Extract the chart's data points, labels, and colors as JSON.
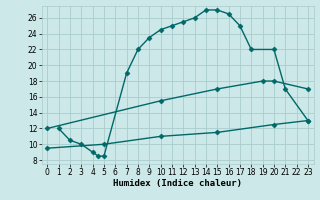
{
  "background_color": "#cce8e8",
  "grid_color": "#aacccc",
  "line_color": "#006868",
  "xlabel": "Humidex (Indice chaleur)",
  "xlim": [
    -0.5,
    23.5
  ],
  "ylim": [
    7.5,
    27.5
  ],
  "yticks": [
    8,
    10,
    12,
    14,
    16,
    18,
    20,
    22,
    24,
    26
  ],
  "xticks": [
    0,
    1,
    2,
    3,
    4,
    5,
    6,
    7,
    8,
    9,
    10,
    11,
    12,
    13,
    14,
    15,
    16,
    17,
    18,
    19,
    20,
    21,
    22,
    23
  ],
  "curve1_x": [
    1,
    2,
    3,
    4,
    4.5,
    5,
    7,
    8,
    9,
    10,
    11,
    12,
    13,
    14,
    15,
    16,
    17,
    18,
    20,
    21,
    23
  ],
  "curve1_y": [
    12,
    10.5,
    10,
    9,
    8.5,
    8.5,
    19,
    22,
    23.5,
    24.5,
    25,
    25.5,
    26,
    27,
    27,
    26.5,
    25,
    22,
    22,
    17,
    13
  ],
  "curve2_x": [
    0,
    10,
    15,
    19,
    20,
    23
  ],
  "curve2_y": [
    12,
    15.5,
    17,
    18,
    18,
    17
  ],
  "curve3_x": [
    0,
    5,
    10,
    15,
    20,
    23
  ],
  "curve3_y": [
    9.5,
    10,
    11,
    11.5,
    12.5,
    13
  ],
  "marker": "D",
  "markersize": 2.5,
  "linewidth": 1.0,
  "xlabel_fontsize": 6.5,
  "tick_fontsize": 5.5
}
